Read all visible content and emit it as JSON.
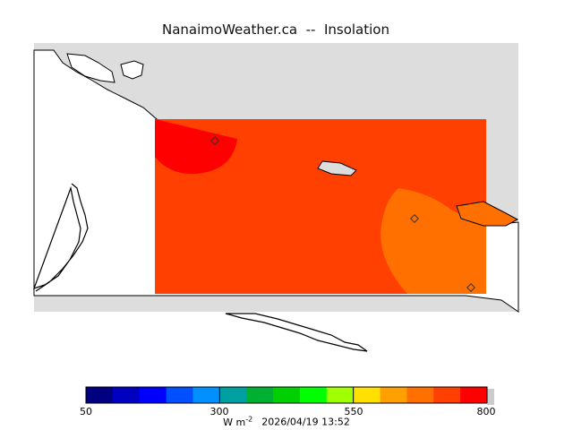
{
  "title": "NanaimoWeather.ca  --  Insolation",
  "colors": {
    "land": "#dddddd",
    "water": "#ffffff",
    "coast": "#000000",
    "field_main": "#ff4000",
    "field_hot": "#ff0000",
    "field_cool": "#ff7000"
  },
  "station_marker_icon": "diamond-icon",
  "colorbar": {
    "colors": [
      "#000080",
      "#0000c0",
      "#0000ff",
      "#0050ff",
      "#0090ff",
      "#00a0a0",
      "#00b030",
      "#00d000",
      "#00ff00",
      "#a0ff00",
      "#ffe000",
      "#ffa000",
      "#ff7000",
      "#ff4000",
      "#ff0000"
    ],
    "tick_labels": [
      "50",
      "300",
      "550",
      "800"
    ],
    "min": 50,
    "max": 800,
    "units_base": "W m",
    "units_exp": "-2",
    "timestamp": "2026/04/19 13:52"
  }
}
